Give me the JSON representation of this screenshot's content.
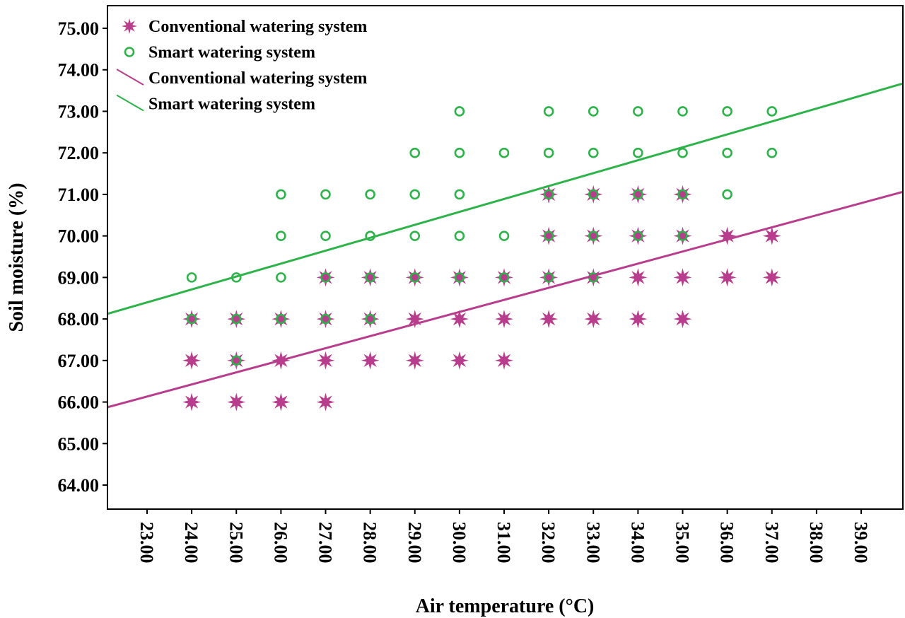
{
  "chart_data": {
    "type": "scatter",
    "xlabel": "Air temperature (°C)",
    "ylabel": "Soil moisture (%)",
    "xlim": [
      22.1,
      40
    ],
    "ylim": [
      63.4,
      75.5
    ],
    "x_ticks": [
      "23.00",
      "24.00",
      "25.00",
      "26.00",
      "27.00",
      "28.00",
      "29.00",
      "30.00",
      "31.00",
      "32.00",
      "33.00",
      "34.00",
      "35.00",
      "36.00",
      "37.00",
      "38.00",
      "39.00"
    ],
    "y_ticks": [
      "64.00",
      "65.00",
      "66.00",
      "67.00",
      "68.00",
      "69.00",
      "70.00",
      "71.00",
      "72.00",
      "73.00",
      "74.00",
      "75.00"
    ],
    "grid": false,
    "legend_position": "top-left",
    "legend": [
      {
        "label": "Conventional watering system",
        "kind": "marker",
        "series": 0
      },
      {
        "label": "Smart watering system",
        "kind": "marker",
        "series": 1
      },
      {
        "label": "Conventional watering system",
        "kind": "line",
        "series": 0
      },
      {
        "label": "Smart watering system",
        "kind": "line",
        "series": 1
      }
    ],
    "series": [
      {
        "name": "Conventional watering system",
        "marker": "star",
        "color": "#b83d8c",
        "points": [
          [
            24,
            66
          ],
          [
            24,
            67
          ],
          [
            24,
            68
          ],
          [
            25,
            66
          ],
          [
            25,
            67
          ],
          [
            25,
            68
          ],
          [
            26,
            66
          ],
          [
            26,
            67
          ],
          [
            26,
            68
          ],
          [
            27,
            66
          ],
          [
            27,
            67
          ],
          [
            27,
            68
          ],
          [
            27,
            69
          ],
          [
            28,
            67
          ],
          [
            28,
            68
          ],
          [
            28,
            69
          ],
          [
            29,
            67
          ],
          [
            29,
            68
          ],
          [
            29,
            69
          ],
          [
            30,
            67
          ],
          [
            30,
            68
          ],
          [
            30,
            69
          ],
          [
            31,
            67
          ],
          [
            31,
            68
          ],
          [
            31,
            69
          ],
          [
            32,
            68
          ],
          [
            32,
            69
          ],
          [
            32,
            70
          ],
          [
            32,
            71
          ],
          [
            33,
            68
          ],
          [
            33,
            69
          ],
          [
            33,
            70
          ],
          [
            33,
            71
          ],
          [
            34,
            68
          ],
          [
            34,
            69
          ],
          [
            34,
            70
          ],
          [
            34,
            71
          ],
          [
            35,
            68
          ],
          [
            35,
            69
          ],
          [
            35,
            70
          ],
          [
            35,
            71
          ],
          [
            36,
            69
          ],
          [
            36,
            70
          ],
          [
            37,
            69
          ],
          [
            37,
            70
          ]
        ],
        "fit_line": [
          [
            22.1,
            65.87
          ],
          [
            40.0,
            71.08
          ]
        ]
      },
      {
        "name": "Smart watering system",
        "marker": "circle",
        "color": "#2db34a",
        "points": [
          [
            24,
            68
          ],
          [
            24,
            69
          ],
          [
            25,
            67
          ],
          [
            25,
            68
          ],
          [
            25,
            69
          ],
          [
            26,
            68
          ],
          [
            26,
            69
          ],
          [
            26,
            70
          ],
          [
            26,
            71
          ],
          [
            27,
            68
          ],
          [
            27,
            69
          ],
          [
            27,
            70
          ],
          [
            27,
            71
          ],
          [
            28,
            68
          ],
          [
            28,
            69
          ],
          [
            28,
            70
          ],
          [
            28,
            71
          ],
          [
            29,
            69
          ],
          [
            29,
            70
          ],
          [
            29,
            71
          ],
          [
            29,
            72
          ],
          [
            30,
            69
          ],
          [
            30,
            70
          ],
          [
            30,
            71
          ],
          [
            30,
            72
          ],
          [
            30,
            73
          ],
          [
            31,
            69
          ],
          [
            31,
            70
          ],
          [
            31,
            72
          ],
          [
            32,
            69
          ],
          [
            32,
            70
          ],
          [
            32,
            71
          ],
          [
            32,
            72
          ],
          [
            32,
            73
          ],
          [
            33,
            69
          ],
          [
            33,
            70
          ],
          [
            33,
            71
          ],
          [
            33,
            72
          ],
          [
            33,
            73
          ],
          [
            34,
            70
          ],
          [
            34,
            71
          ],
          [
            34,
            72
          ],
          [
            34,
            73
          ],
          [
            35,
            70
          ],
          [
            35,
            71
          ],
          [
            35,
            72
          ],
          [
            35,
            73
          ],
          [
            36,
            71
          ],
          [
            36,
            72
          ],
          [
            36,
            73
          ],
          [
            37,
            72
          ],
          [
            37,
            73
          ]
        ],
        "fit_line": [
          [
            22.1,
            68.12
          ],
          [
            40.0,
            73.69
          ]
        ]
      }
    ]
  }
}
